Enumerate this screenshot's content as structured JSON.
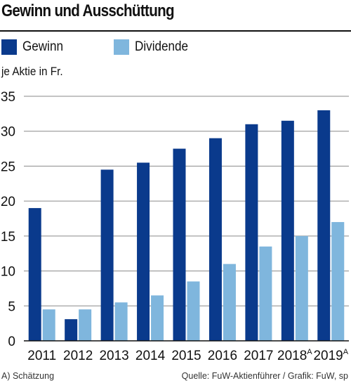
{
  "colors": {
    "gewinn": "#0a3a8c",
    "dividende": "#7fb6dd",
    "grid": "#8a8a8a",
    "axis": "#111111"
  },
  "legend": {
    "gewinn": "Gewinn",
    "dividende": "Dividende"
  },
  "footnote": "A) Schätzung",
  "source": "Quelle: FuW-Aktienführer / Grafik: FuW, sp",
  "chart_data": {
    "type": "bar",
    "title": "Gewinn und Ausschüttung",
    "ylabel": "je Aktie in Fr.",
    "xlabel": "",
    "ylim": [
      0,
      35
    ],
    "yticks": [
      0,
      5,
      10,
      15,
      20,
      25,
      30,
      35
    ],
    "grid": true,
    "legend_position": "top-left",
    "categories": [
      "2011",
      "2012",
      "2013",
      "2014",
      "2015",
      "2016",
      "2017",
      "2018",
      "2019"
    ],
    "category_superscripts": [
      "",
      "",
      "",
      "",
      "",
      "",
      "",
      "A",
      "A"
    ],
    "series": [
      {
        "name": "Gewinn",
        "values": [
          19,
          3.1,
          24.5,
          25.5,
          27.5,
          29,
          31,
          31.5,
          33
        ]
      },
      {
        "name": "Dividende",
        "values": [
          4.5,
          4.5,
          5.5,
          6.5,
          8.5,
          11,
          13.5,
          15,
          17
        ]
      }
    ]
  }
}
